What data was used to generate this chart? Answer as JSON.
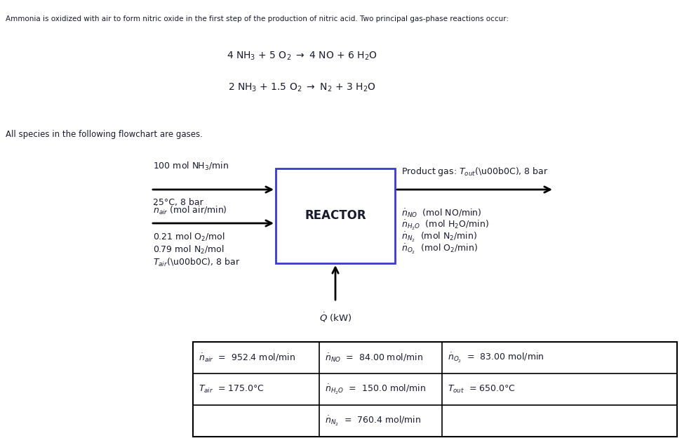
{
  "bg_color": "#ffffff",
  "text_color": "#1a1a2e",
  "title_text": "Ammonia is oxidized with air to form nitric oxide in the first step of the production of nitric acid. Two principal gas-phase reactions occur:",
  "reaction1_parts": [
    "4 NH",
    "3",
    " + 5 O",
    "2",
    " → 4 NO + 6 H",
    "2",
    "O"
  ],
  "reaction2_parts": [
    "2 NH",
    "3",
    " + 1.5 O",
    "2",
    " → N",
    "2",
    " + 3 H",
    "2",
    "O"
  ],
  "flowchart_note": "All species in the following flowchart are gases.",
  "reactor_label": "REACTOR",
  "fig_w": 9.92,
  "fig_h": 6.31,
  "dpi": 100
}
